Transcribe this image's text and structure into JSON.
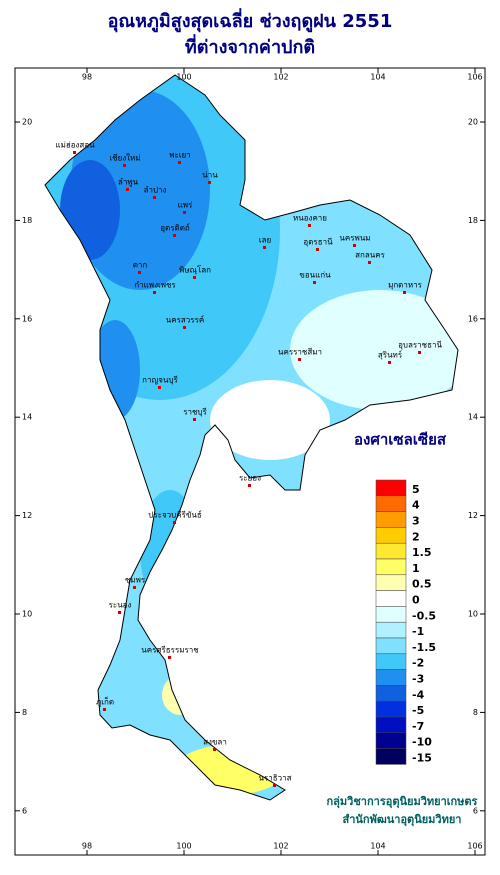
{
  "title": "อุณหภูมิสูงสุดเฉลี่ย ช่วงฤดูฝน 2551",
  "subtitle": "ที่ต่างจากค่าปกติ",
  "lon_ticks": [
    98,
    100,
    102,
    104,
    106
  ],
  "lat_ticks": [
    20,
    18,
    16,
    14,
    12,
    10,
    8,
    6
  ],
  "legend": {
    "title": "องศาเซลเซียส",
    "items": [
      {
        "label": 5,
        "color": "#ff0000"
      },
      {
        "label": 4,
        "color": "#ff6a00"
      },
      {
        "label": 3,
        "color": "#ff9c00"
      },
      {
        "label": 2,
        "color": "#ffcc00"
      },
      {
        "label": 1.5,
        "color": "#ffe830"
      },
      {
        "label": 1,
        "color": "#ffff66"
      },
      {
        "label": 0.5,
        "color": "#ffffb0"
      },
      {
        "label": 0,
        "color": "#ffffff"
      },
      {
        "label": -0.5,
        "color": "#e0ffff"
      },
      {
        "label": -1,
        "color": "#b0f0ff"
      },
      {
        "label": -1.5,
        "color": "#7fe0ff"
      },
      {
        "label": -2,
        "color": "#40c8f8"
      },
      {
        "label": -3,
        "color": "#2090f0"
      },
      {
        "label": -4,
        "color": "#1060e0"
      },
      {
        "label": -5,
        "color": "#0030e0"
      },
      {
        "label": -7,
        "color": "#0010c0"
      },
      {
        "label": -10,
        "color": "#000090"
      },
      {
        "label": -15,
        "color": "#000060"
      }
    ]
  },
  "provinces": [
    "แม่ฮ่องสอน",
    "เชียงใหม่",
    "ลำพูน",
    "พะเยา",
    "น่าน",
    "ลำปาง",
    "แพร่",
    "อุตรดิตถ์",
    "ตาก",
    "พิษณุโลก",
    "กำแพงเพชร",
    "นครสวรรค์",
    "หนองคาย",
    "อุดรธานี",
    "เลย",
    "นครพนม",
    "สกลนคร",
    "มุกดาหาร",
    "ขอนแก่น",
    "อุบลราชธานี",
    "นครราชสีมา",
    "สุรินทร์",
    "กาญจนบุรี",
    "ราชบุรี",
    "ระยอง",
    "ประจวบคีรีขันธ์",
    "ชุมพร",
    "ระนอง",
    "นครศรีธรรมราช",
    "สงขลา",
    "นราธิวาส",
    "ภูเก็ต"
  ],
  "credit": [
    "กลุ่มวิชาการอุตุนิยมวิทยาเกษตร",
    "สำนักพัฒนาอุตุนิยมวิทยา"
  ]
}
